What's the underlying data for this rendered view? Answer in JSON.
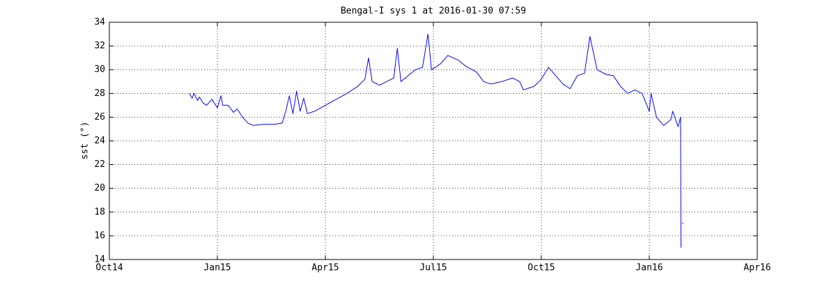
{
  "chart_data": {
    "type": "line",
    "title": "Bengal-I sys 1 at 2016-01-30 07:59",
    "y_label": "sst (°)",
    "color": "#0000ff",
    "grid": true,
    "xlim": [
      0,
      18
    ],
    "xticks": [
      {
        "value": 0,
        "label": "Oct14"
      },
      {
        "value": 3,
        "label": "Jan15"
      },
      {
        "value": 6,
        "label": "Apr15"
      },
      {
        "value": 9,
        "label": "Jul15"
      },
      {
        "value": 12,
        "label": "Oct15"
      },
      {
        "value": 15,
        "label": "Jan16"
      },
      {
        "value": 18,
        "label": "Apr16"
      }
    ],
    "ylim": [
      14,
      34
    ],
    "yticks": [
      14,
      16,
      18,
      20,
      22,
      24,
      26,
      28,
      30,
      32,
      34
    ],
    "x": [
      2.22,
      2.3,
      2.35,
      2.45,
      2.5,
      2.6,
      2.7,
      2.85,
      3.0,
      3.1,
      3.15,
      3.3,
      3.45,
      3.55,
      3.7,
      3.85,
      4.0,
      4.3,
      4.6,
      4.8,
      4.9,
      5.0,
      5.1,
      5.2,
      5.3,
      5.4,
      5.5,
      5.7,
      6.0,
      6.3,
      6.6,
      6.9,
      7.1,
      7.2,
      7.3,
      7.5,
      7.7,
      7.9,
      8.0,
      8.1,
      8.3,
      8.5,
      8.7,
      8.85,
      8.95,
      9.2,
      9.4,
      9.7,
      9.9,
      10.2,
      10.4,
      10.6,
      10.9,
      11.2,
      11.4,
      11.5,
      11.8,
      12.0,
      12.2,
      12.4,
      12.6,
      12.8,
      13.0,
      13.2,
      13.35,
      13.55,
      13.8,
      14.0,
      14.2,
      14.4,
      14.6,
      14.8,
      15.0,
      15.05,
      15.2,
      15.4,
      15.6,
      15.65,
      15.8,
      15.87,
      15.88,
      15.9,
      15.93
    ],
    "values": [
      28.0,
      27.6,
      28.0,
      27.4,
      27.7,
      27.2,
      27.0,
      27.5,
      26.8,
      27.8,
      27.0,
      27.0,
      26.4,
      26.7,
      26.0,
      25.5,
      25.3,
      25.4,
      25.4,
      25.5,
      26.5,
      27.8,
      26.3,
      28.2,
      26.5,
      27.6,
      26.3,
      26.5,
      27.0,
      27.5,
      28.0,
      28.6,
      29.2,
      31.0,
      29.0,
      28.7,
      29.0,
      29.3,
      31.8,
      29.0,
      29.5,
      30.0,
      30.2,
      33.0,
      30.0,
      30.5,
      31.2,
      30.8,
      30.3,
      29.8,
      29.0,
      28.8,
      29.0,
      29.3,
      29.0,
      28.3,
      28.6,
      29.2,
      30.2,
      29.5,
      28.8,
      28.4,
      29.5,
      29.7,
      32.8,
      30.0,
      29.6,
      29.5,
      28.6,
      28.0,
      28.3,
      28.0,
      26.5,
      28.0,
      26.0,
      25.3,
      25.8,
      26.5,
      25.2,
      26.0,
      15.0,
      null,
      17.05
    ]
  }
}
